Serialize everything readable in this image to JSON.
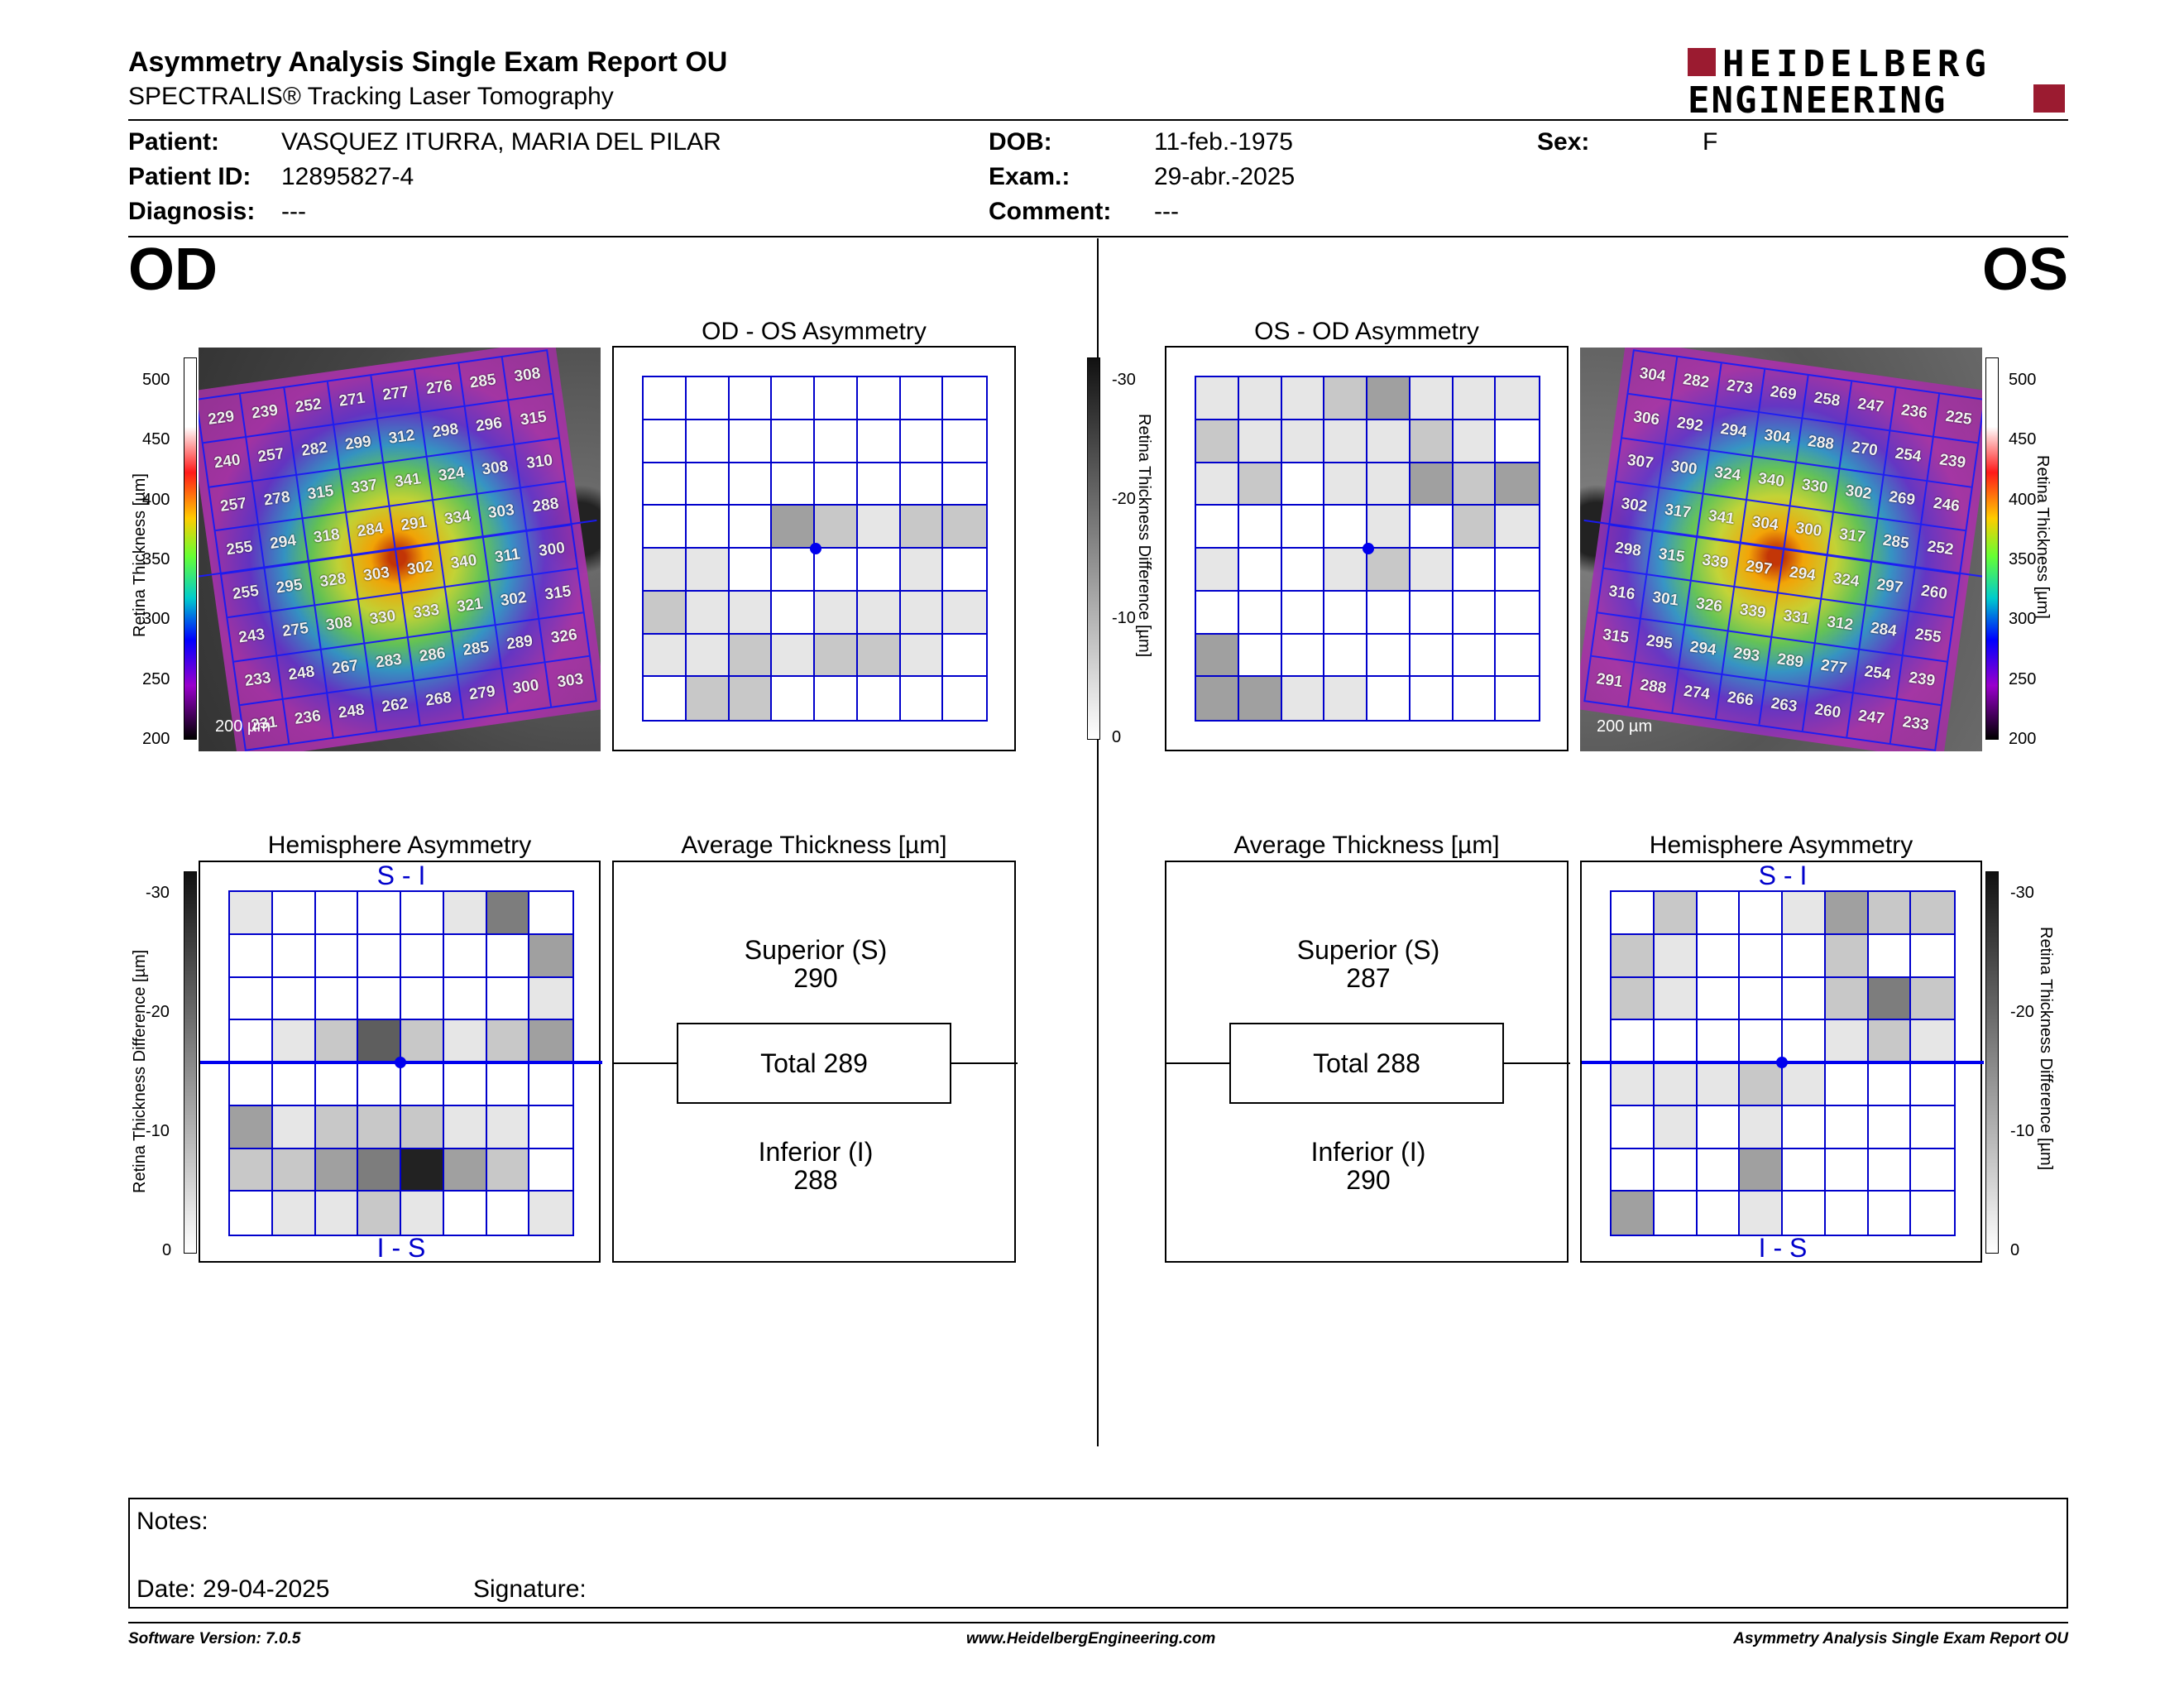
{
  "header": {
    "title": "Asymmetry Analysis Single Exam Report OU",
    "subtitle": "SPECTRALIS® Tracking Laser Tomography",
    "logo_line1": "HEIDELBERG",
    "logo_line2": "ENGINEERING"
  },
  "patient": {
    "patient_label": "Patient:",
    "patient_value": "VASQUEZ ITURRA, MARIA DEL PILAR",
    "id_label": "Patient ID:",
    "id_value": "12895827-4",
    "diagnosis_label": "Diagnosis:",
    "diagnosis_value": "---",
    "dob_label": "DOB:",
    "dob_value": "11-feb.-1975",
    "exam_label": "Exam.:",
    "exam_value": "29-abr.-2025",
    "comment_label": "Comment:",
    "comment_value": "---",
    "sex_label": "Sex:",
    "sex_value": "F"
  },
  "od": {
    "eye": "OD",
    "asym_title": "OD - OS Asymmetry",
    "hemi_title": "Hemisphere Asymmetry",
    "avg_title": "Average Thickness [µm]",
    "superior_label": "Superior (S)",
    "superior_value": "290",
    "total": "Total 289",
    "inferior_label": "Inferior (I)",
    "inferior_value": "288",
    "si": "S - I",
    "is": "I - S",
    "scale_bar": "200 µm",
    "thickness_grid": [
      [
        "229",
        "239",
        "252",
        "271",
        "277",
        "276",
        "285",
        "308"
      ],
      [
        "240",
        "257",
        "282",
        "299",
        "312",
        "298",
        "296",
        "315"
      ],
      [
        "257",
        "278",
        "315",
        "337",
        "341",
        "324",
        "308",
        "310"
      ],
      [
        "255",
        "294",
        "318",
        "284",
        "291",
        "334",
        "303",
        "288"
      ],
      [
        "255",
        "295",
        "328",
        "303",
        "302",
        "340",
        "311",
        "300"
      ],
      [
        "243",
        "275",
        "308",
        "330",
        "333",
        "321",
        "302",
        "315"
      ],
      [
        "233",
        "248",
        "267",
        "283",
        "286",
        "285",
        "289",
        "326"
      ],
      [
        "231",
        "236",
        "248",
        "262",
        "268",
        "279",
        "300",
        "303"
      ]
    ],
    "asym_shade": [
      [
        0,
        0,
        0,
        0,
        0,
        0,
        0,
        0
      ],
      [
        0,
        0,
        0,
        0,
        0,
        0,
        0,
        0
      ],
      [
        0,
        0,
        0,
        0,
        0,
        0,
        0,
        0
      ],
      [
        0,
        0,
        0,
        3,
        2,
        1,
        2,
        2
      ],
      [
        1,
        1,
        0,
        0,
        0,
        0,
        1,
        0
      ],
      [
        2,
        1,
        1,
        0,
        1,
        1,
        1,
        1
      ],
      [
        1,
        1,
        2,
        1,
        2,
        2,
        1,
        0
      ],
      [
        0,
        2,
        2,
        0,
        0,
        0,
        0,
        0
      ]
    ],
    "hemi_shade": [
      [
        1,
        0,
        0,
        0,
        0,
        1,
        4,
        0
      ],
      [
        0,
        0,
        0,
        0,
        0,
        0,
        0,
        3
      ],
      [
        0,
        0,
        0,
        0,
        0,
        0,
        0,
        1
      ],
      [
        0,
        1,
        2,
        5,
        2,
        1,
        2,
        3
      ],
      [
        0,
        0,
        0,
        0,
        0,
        0,
        0,
        0
      ],
      [
        3,
        1,
        2,
        2,
        2,
        1,
        1,
        0
      ],
      [
        2,
        2,
        3,
        4,
        7,
        3,
        2,
        0
      ],
      [
        0,
        1,
        1,
        2,
        1,
        0,
        0,
        1
      ]
    ]
  },
  "os": {
    "eye": "OS",
    "asym_title": "OS - OD Asymmetry",
    "hemi_title": "Hemisphere Asymmetry",
    "avg_title": "Average Thickness [µm]",
    "superior_label": "Superior (S)",
    "superior_value": "287",
    "total": "Total 288",
    "inferior_label": "Inferior (I)",
    "inferior_value": "290",
    "si": "S - I",
    "is": "I - S",
    "scale_bar": "200 µm",
    "thickness_grid": [
      [
        "304",
        "282",
        "273",
        "269",
        "258",
        "247",
        "236",
        "225"
      ],
      [
        "306",
        "292",
        "294",
        "304",
        "288",
        "270",
        "254",
        "239"
      ],
      [
        "307",
        "300",
        "324",
        "340",
        "330",
        "302",
        "269",
        "246"
      ],
      [
        "302",
        "317",
        "341",
        "304",
        "300",
        "317",
        "285",
        "252"
      ],
      [
        "298",
        "315",
        "339",
        "297",
        "294",
        "324",
        "297",
        "260"
      ],
      [
        "316",
        "301",
        "326",
        "339",
        "331",
        "312",
        "284",
        "255"
      ],
      [
        "315",
        "295",
        "294",
        "293",
        "289",
        "277",
        "254",
        "239"
      ],
      [
        "291",
        "288",
        "274",
        "266",
        "263",
        "260",
        "247",
        "233"
      ]
    ],
    "asym_shade": [
      [
        1,
        1,
        1,
        2,
        3,
        1,
        1,
        1
      ],
      [
        2,
        1,
        1,
        1,
        1,
        2,
        1,
        0
      ],
      [
        1,
        2,
        0,
        1,
        1,
        3,
        2,
        3
      ],
      [
        0,
        0,
        0,
        0,
        1,
        0,
        2,
        1
      ],
      [
        1,
        0,
        0,
        1,
        2,
        1,
        0,
        0
      ],
      [
        0,
        0,
        0,
        0,
        0,
        0,
        0,
        0
      ],
      [
        3,
        0,
        0,
        0,
        0,
        0,
        0,
        0
      ],
      [
        3,
        3,
        1,
        1,
        0,
        0,
        0,
        0
      ]
    ],
    "hemi_shade": [
      [
        0,
        2,
        0,
        0,
        1,
        3,
        2,
        2
      ],
      [
        2,
        1,
        0,
        0,
        0,
        2,
        0,
        0
      ],
      [
        2,
        1,
        0,
        0,
        0,
        2,
        4,
        2
      ],
      [
        0,
        0,
        0,
        0,
        0,
        1,
        2,
        1
      ],
      [
        1,
        1,
        1,
        2,
        1,
        0,
        0,
        0
      ],
      [
        0,
        1,
        0,
        1,
        0,
        0,
        0,
        0
      ],
      [
        0,
        0,
        0,
        3,
        0,
        0,
        0,
        0
      ],
      [
        3,
        0,
        0,
        1,
        0,
        0,
        0,
        0
      ]
    ]
  },
  "scales": {
    "thickness_label": "Retina  Thickness [µm]",
    "thickness_ticks": [
      "500",
      "450",
      "400",
      "350",
      "300",
      "250",
      "200"
    ],
    "diff_label": "Retina Thickness Difference [µm]",
    "diff_ticks": [
      "-30",
      "-20",
      "-10",
      "0"
    ]
  },
  "notes": {
    "notes_label": "Notes:",
    "date_label": "Date: 29-04-2025",
    "signature_label": "Signature:"
  },
  "footer": {
    "version": "Software Version: 7.0.5",
    "url": "www.HeidelbergEngineering.com",
    "report": "Asymmetry Analysis Single Exam Report OU"
  },
  "colors": {
    "grid_blue": "#0000cc",
    "logo_red": "#9b1b30"
  }
}
